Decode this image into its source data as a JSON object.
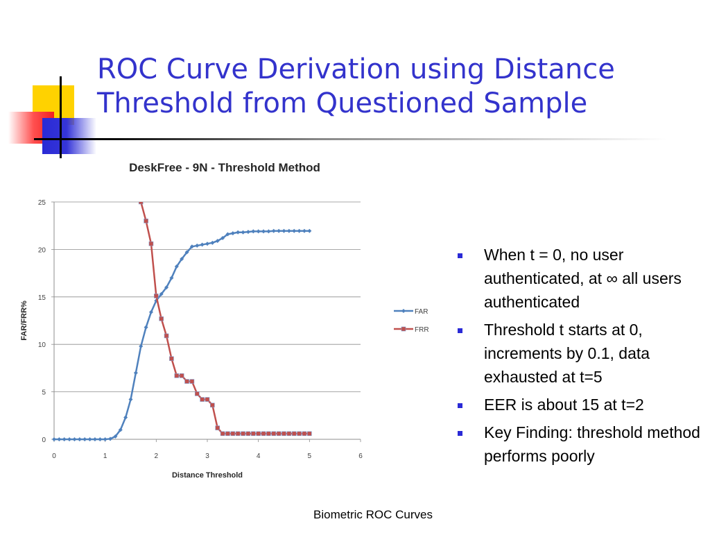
{
  "slide": {
    "title": "ROC Curve Derivation using Distance Threshold from Questioned Sample",
    "bullets": [
      "When t = 0, no user authenticated, at ∞ all users authenticated",
      "Threshold t starts at 0, increments by 0.1,  data exhausted at t=5",
      "EER is about 15 at t=2",
      "Key Finding: threshold method performs poorly"
    ],
    "footer": "Biometric ROC Curves",
    "accent_color": "#3333cc"
  },
  "chart_data": {
    "type": "line",
    "title": "DeskFree - 9N - Threshold Method",
    "xlabel": "Distance Threshold",
    "ylabel": "FAR/FRR%",
    "xlim": [
      0,
      6
    ],
    "ylim": [
      0,
      25
    ],
    "xticks": [
      0,
      1,
      2,
      3,
      4,
      5,
      6
    ],
    "yticks": [
      0,
      5,
      10,
      15,
      20,
      25
    ],
    "grid": "horizontal",
    "legend": "right",
    "series": [
      {
        "name": "FAR",
        "color": "#4f81bd",
        "marker": "diamond",
        "x": [
          0,
          0.1,
          0.2,
          0.3,
          0.4,
          0.5,
          0.6,
          0.7,
          0.8,
          0.9,
          1.0,
          1.1,
          1.2,
          1.3,
          1.4,
          1.5,
          1.6,
          1.7,
          1.8,
          1.9,
          2.0,
          2.1,
          2.2,
          2.3,
          2.4,
          2.5,
          2.6,
          2.7,
          2.8,
          2.9,
          3.0,
          3.1,
          3.2,
          3.3,
          3.4,
          3.5,
          3.6,
          3.7,
          3.8,
          3.9,
          4.0,
          4.1,
          4.2,
          4.3,
          4.4,
          4.5,
          4.6,
          4.7,
          4.8,
          4.9,
          5.0
        ],
        "values": [
          0,
          0,
          0,
          0,
          0,
          0,
          0,
          0,
          0,
          0,
          0,
          0.05,
          0.3,
          1.0,
          2.3,
          4.2,
          7.0,
          9.8,
          11.8,
          13.4,
          14.6,
          15.3,
          16.0,
          17.0,
          18.2,
          19.0,
          19.7,
          20.3,
          20.4,
          20.5,
          20.6,
          20.7,
          20.9,
          21.2,
          21.6,
          21.7,
          21.8,
          21.8,
          21.85,
          21.9,
          21.9,
          21.9,
          21.9,
          21.95,
          21.95,
          21.95,
          21.95,
          21.95,
          21.95,
          21.95,
          21.95
        ]
      },
      {
        "name": "FRR",
        "color": "#c0504d",
        "marker": "square",
        "x": [
          1.7,
          1.8,
          1.9,
          2.0,
          2.1,
          2.2,
          2.3,
          2.4,
          2.5,
          2.6,
          2.7,
          2.8,
          2.9,
          3.0,
          3.1,
          3.2,
          3.3,
          3.4,
          3.5,
          3.6,
          3.7,
          3.8,
          3.9,
          4.0,
          4.1,
          4.2,
          4.3,
          4.4,
          4.5,
          4.6,
          4.7,
          4.8,
          4.9,
          5.0
        ],
        "values": [
          25.0,
          23.0,
          20.6,
          15.1,
          12.7,
          10.9,
          8.5,
          6.7,
          6.7,
          6.1,
          6.1,
          4.8,
          4.2,
          4.2,
          3.6,
          1.2,
          0.6,
          0.6,
          0.6,
          0.6,
          0.6,
          0.6,
          0.6,
          0.6,
          0.6,
          0.6,
          0.6,
          0.6,
          0.6,
          0.6,
          0.6,
          0.6,
          0.6,
          0.6
        ]
      }
    ]
  }
}
